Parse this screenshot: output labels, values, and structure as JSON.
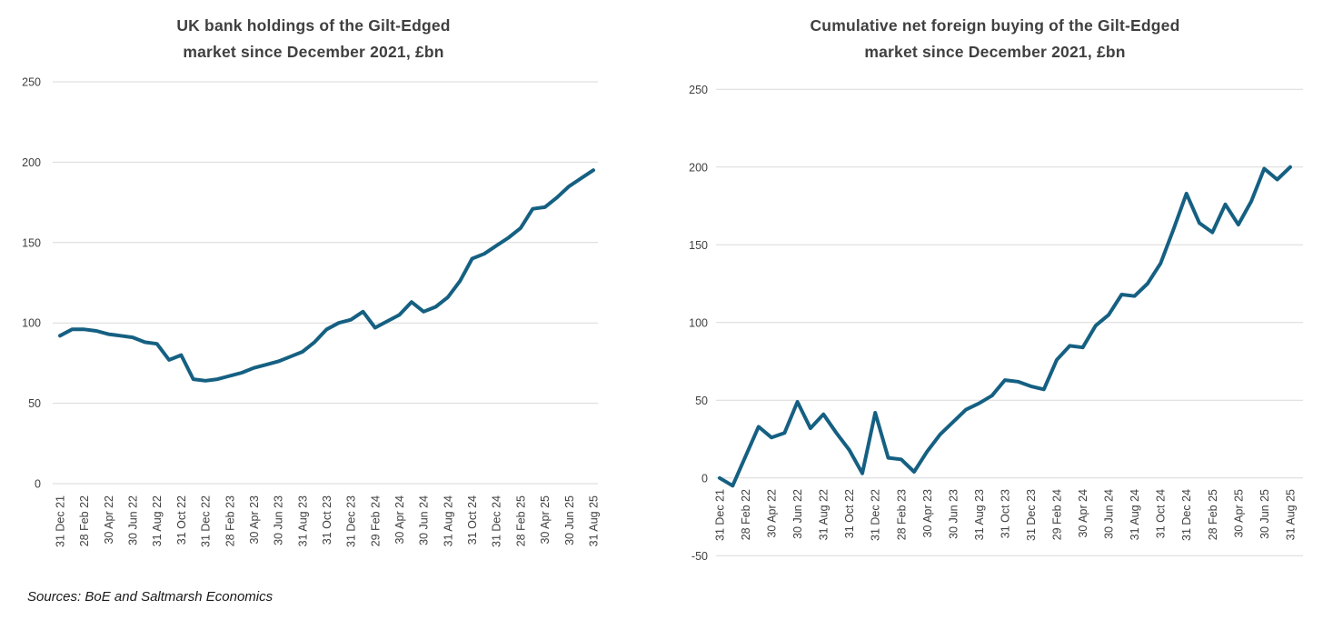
{
  "page": {
    "background": "#ffffff"
  },
  "source_note": "Sources: BoE and Saltmarsh Economics",
  "colors": {
    "line": "#156082",
    "gridline": "#d9d9d9",
    "axis_label": "#404040",
    "title": "#404040"
  },
  "chart_data": [
    {
      "type": "line",
      "title": "UK bank holdings of the Gilt-Edged market since December 2021, £bn",
      "title_line1": "UK bank holdings of the Gilt-Edged",
      "title_line2": "market since December 2021, £bn",
      "legend": "none",
      "grid": "on",
      "ylim": [
        0,
        250
      ],
      "y_ticks": [
        0,
        50,
        100,
        150,
        200,
        250
      ],
      "x_tick_every": 2,
      "x_tick_labels": [
        "31 Dec 21",
        "28 Feb 22",
        "30 Apr 22",
        "30 Jun 22",
        "31 Aug 22",
        "31 Oct 22",
        "31 Dec 22",
        "28 Feb 23",
        "30 Apr 23",
        "30 Jun 23",
        "31 Aug 23",
        "31 Oct 23",
        "31 Dec 23",
        "29 Feb 24",
        "30 Apr 24",
        "30 Jun 24",
        "31 Aug 24",
        "31 Oct 24",
        "31 Dec 24",
        "28 Feb 25",
        "30 Apr 25",
        "30 Jun 25",
        "31 Aug 25"
      ],
      "values": [
        92,
        96,
        96,
        95,
        93,
        92,
        91,
        88,
        87,
        77,
        80,
        65,
        64,
        65,
        67,
        69,
        72,
        74,
        76,
        79,
        82,
        88,
        96,
        100,
        102,
        107,
        97,
        101,
        105,
        113,
        107,
        110,
        116,
        126,
        140,
        143,
        148,
        153,
        159,
        171,
        172,
        178,
        185,
        190,
        195
      ]
    },
    {
      "type": "line",
      "title": "Cumulative net foreign buying of the Gilt-Edged market since December 2021, £bn",
      "title_line1": "Cumulative net foreign buying of the Gilt-Edged",
      "title_line2": "market since December 2021, £bn",
      "legend": "none",
      "grid": "on",
      "ylim": [
        -50,
        250
      ],
      "y_ticks": [
        -50,
        0,
        50,
        100,
        150,
        200,
        250
      ],
      "x_tick_every": 2,
      "x_tick_labels": [
        "31 Dec 21",
        "28 Feb 22",
        "30 Apr 22",
        "30 Jun 22",
        "31 Aug 22",
        "31 Oct 22",
        "31 Dec 22",
        "28 Feb 23",
        "30 Apr 23",
        "30 Jun 23",
        "31 Aug 23",
        "31 Oct 23",
        "31 Dec 23",
        "29 Feb 24",
        "30 Apr 24",
        "30 Jun 24",
        "31 Aug 24",
        "31 Oct 24",
        "31 Dec 24",
        "28 Feb 25",
        "30 Apr 25",
        "30 Jun 25",
        "31 Aug 25"
      ],
      "values": [
        0,
        -5,
        14,
        33,
        26,
        29,
        49,
        32,
        41,
        29,
        18,
        3,
        42,
        13,
        12,
        4,
        17,
        28,
        36,
        44,
        48,
        53,
        63,
        62,
        59,
        57,
        76,
        85,
        84,
        98,
        105,
        118,
        117,
        125,
        138,
        160,
        183,
        164,
        158,
        176,
        163,
        178,
        199,
        192,
        200
      ]
    }
  ]
}
